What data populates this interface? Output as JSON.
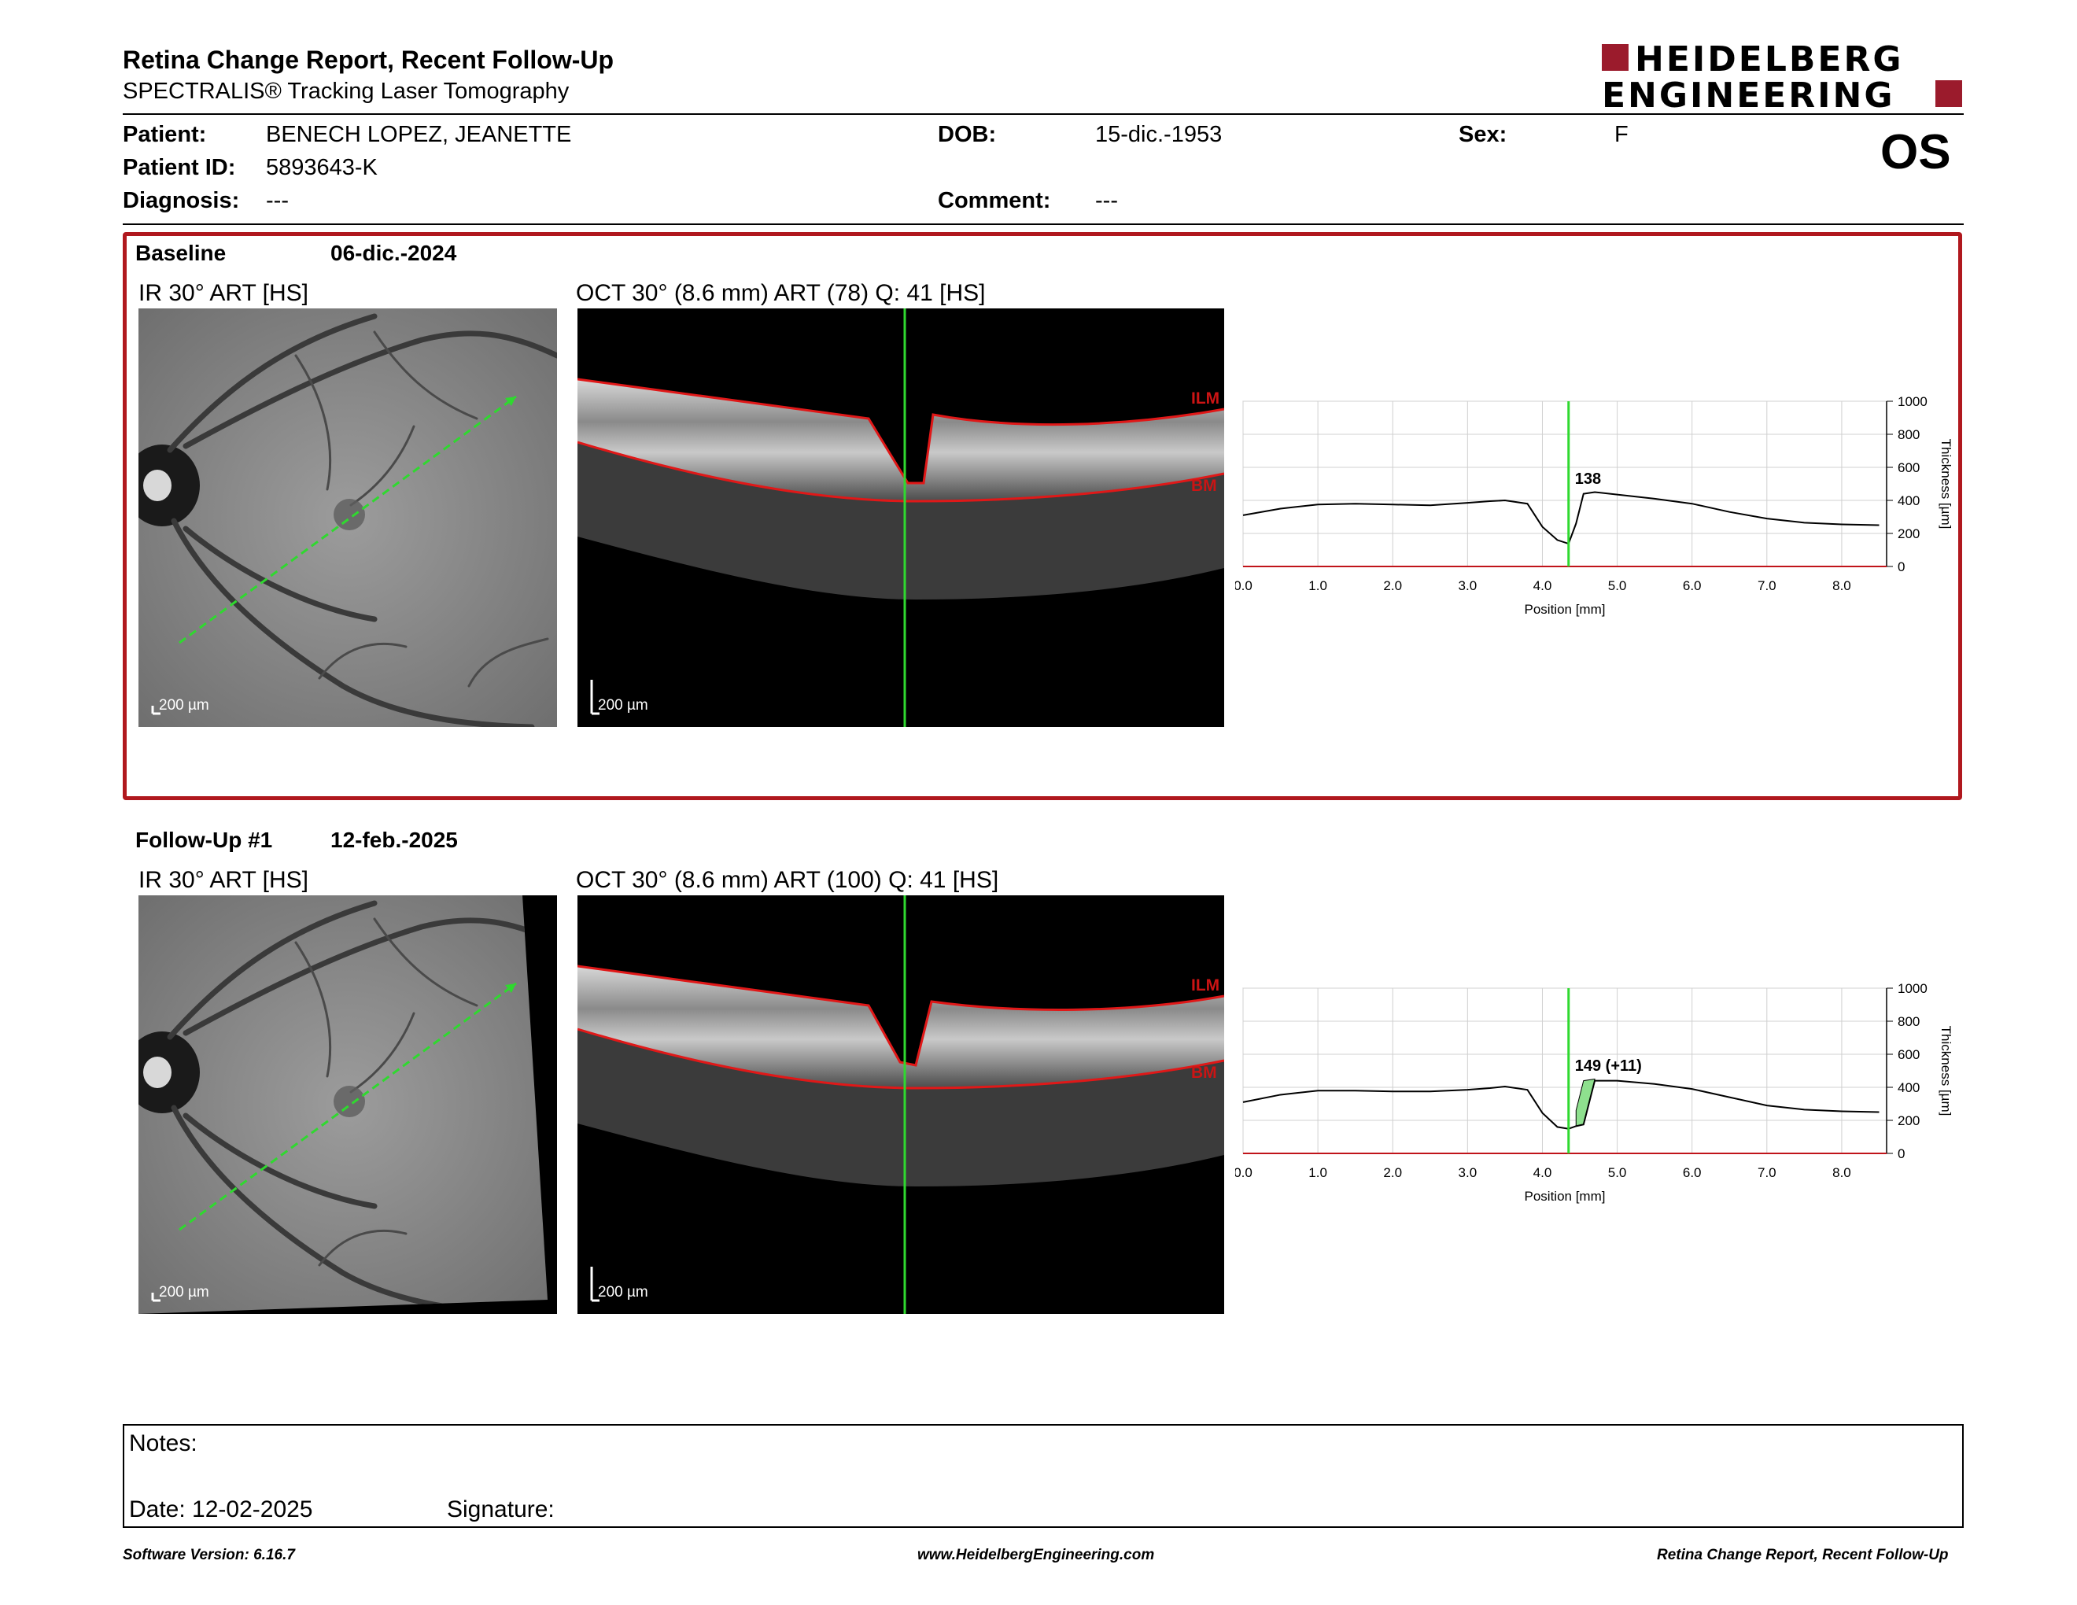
{
  "header": {
    "title": "Retina Change Report, Recent Follow-Up",
    "subtitle": "SPECTRALIS® Tracking Laser Tomography",
    "logo_line1": "HEIDELBERG",
    "logo_line2": "ENGINEERING",
    "brand_color": "#9b1b2c"
  },
  "patient": {
    "patient_label": "Patient:",
    "patient_value": "BENECH LOPEZ, JEANETTE",
    "id_label": "Patient ID:",
    "id_value": "5893643-K",
    "diagnosis_label": "Diagnosis:",
    "diagnosis_value": "---",
    "dob_label": "DOB:",
    "dob_value": "15-dic.-1953",
    "comment_label": "Comment:",
    "comment_value": "---",
    "sex_label": "Sex:",
    "sex_value": "F",
    "eye": "OS"
  },
  "baseline": {
    "label": "Baseline",
    "date": "06-dic.-2024",
    "ir_title": "IR 30° ART [HS]",
    "oct_title": "OCT 30° (8.6 mm) ART (78) Q: 41 [HS]",
    "scale_ir": "200 µm",
    "scale_oct": "200 µm",
    "ilm": "ILM",
    "bm": "BM",
    "marker_value": "138",
    "highlight_color": "#c0141a"
  },
  "followup": {
    "label": "Follow-Up #1",
    "date": "12-feb.-2025",
    "ir_title": "IR 30° ART [HS]",
    "oct_title": "OCT 30° (8.6 mm) ART (100) Q: 41 [HS]",
    "scale_ir": "200 µm",
    "scale_oct": "200 µm",
    "ilm": "ILM",
    "bm": "BM",
    "marker_value": "149 (+11)",
    "change_fill": "#8ee08e"
  },
  "chart_data": [
    {
      "type": "line",
      "xlabel": "Position [mm]",
      "ylabel": "Thickness [µm]",
      "xlim": [
        0,
        8.6
      ],
      "ylim": [
        0,
        1000
      ],
      "xticks": [
        "0.0",
        "1.0",
        "2.0",
        "3.0",
        "4.0",
        "5.0",
        "6.0",
        "7.0",
        "8.0"
      ],
      "yticks": [
        "0",
        "200",
        "400",
        "600",
        "800",
        "1000"
      ],
      "marker_x": 4.35,
      "series": [
        {
          "x": [
            0,
            0.5,
            1.0,
            1.5,
            2.0,
            2.5,
            3.0,
            3.3,
            3.5,
            3.8,
            4.0,
            4.2,
            4.35,
            4.45,
            4.55,
            4.7,
            5.0,
            5.5,
            6.0,
            6.5,
            7.0,
            7.5,
            8.0,
            8.5
          ],
          "y": [
            310,
            350,
            375,
            380,
            375,
            370,
            385,
            395,
            400,
            380,
            240,
            160,
            138,
            260,
            440,
            450,
            435,
            410,
            380,
            330,
            290,
            265,
            255,
            250
          ]
        }
      ]
    },
    {
      "type": "line",
      "xlabel": "Position [mm]",
      "ylabel": "Thickness [µm]",
      "xlim": [
        0,
        8.6
      ],
      "ylim": [
        0,
        1000
      ],
      "xticks": [
        "0.0",
        "1.0",
        "2.0",
        "3.0",
        "4.0",
        "5.0",
        "6.0",
        "7.0",
        "8.0"
      ],
      "yticks": [
        "0",
        "200",
        "400",
        "600",
        "800",
        "1000"
      ],
      "marker_x": 4.35,
      "series": [
        {
          "x": [
            0,
            0.5,
            1.0,
            1.5,
            2.0,
            2.5,
            3.0,
            3.3,
            3.5,
            3.8,
            4.0,
            4.2,
            4.35,
            4.45,
            4.55,
            4.7,
            5.0,
            5.5,
            6.0,
            6.5,
            7.0,
            7.5,
            8.0,
            8.5
          ],
          "y": [
            310,
            355,
            380,
            380,
            375,
            375,
            385,
            395,
            405,
            385,
            245,
            160,
            149,
            165,
            175,
            440,
            440,
            420,
            390,
            340,
            290,
            265,
            255,
            250
          ]
        }
      ]
    }
  ],
  "notes": {
    "notes_label": "Notes:",
    "date_label": "Date: 12-02-2025",
    "signature_label": "Signature:"
  },
  "footer": {
    "software": "Software Version: 6.16.7",
    "website": "www.HeidelbergEngineering.com",
    "report": "Retina Change Report, Recent Follow-Up"
  }
}
